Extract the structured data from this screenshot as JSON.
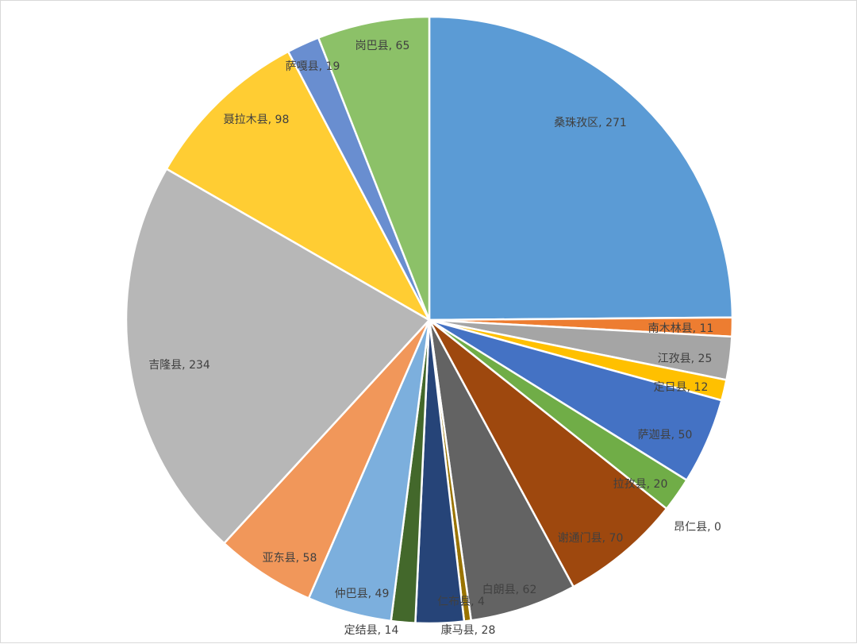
{
  "chart_data": {
    "type": "pie",
    "title": "",
    "start_angle_deg": 0,
    "direction": "clockwise",
    "show_legend": false,
    "label_format": "{category}, {value}",
    "slices": [
      {
        "category": "桑珠孜区",
        "value": 271,
        "color": "#5B9BD5"
      },
      {
        "category": "南木林县",
        "value": 11,
        "color": "#ED7D31"
      },
      {
        "category": "江孜县",
        "value": 25,
        "color": "#A5A5A5"
      },
      {
        "category": "定日县",
        "value": 12,
        "color": "#FFC000"
      },
      {
        "category": "萨迦县",
        "value": 50,
        "color": "#4472C4"
      },
      {
        "category": "拉孜县",
        "value": 20,
        "color": "#70AD47"
      },
      {
        "category": "昂仁县",
        "value": 0,
        "color": "#264478"
      },
      {
        "category": "谢通门县",
        "value": 70,
        "color": "#9E480E"
      },
      {
        "category": "白朗县",
        "value": 62,
        "color": "#636363"
      },
      {
        "category": "仁布县",
        "value": 4,
        "color": "#997300"
      },
      {
        "category": "康马县",
        "value": 28,
        "color": "#264478"
      },
      {
        "category": "定结县",
        "value": 14,
        "color": "#43682B"
      },
      {
        "category": "仲巴县",
        "value": 49,
        "color": "#7CAFDD"
      },
      {
        "category": "亚东县",
        "value": 58,
        "color": "#F1975A"
      },
      {
        "category": "吉隆县",
        "value": 234,
        "color": "#B7B7B7"
      },
      {
        "category": "聂拉木县",
        "value": 98,
        "color": "#FFCD33"
      },
      {
        "category": "萨嘎县",
        "value": 19,
        "color": "#698ED0"
      },
      {
        "category": "岗巴县",
        "value": 65,
        "color": "#8CC168"
      }
    ]
  }
}
